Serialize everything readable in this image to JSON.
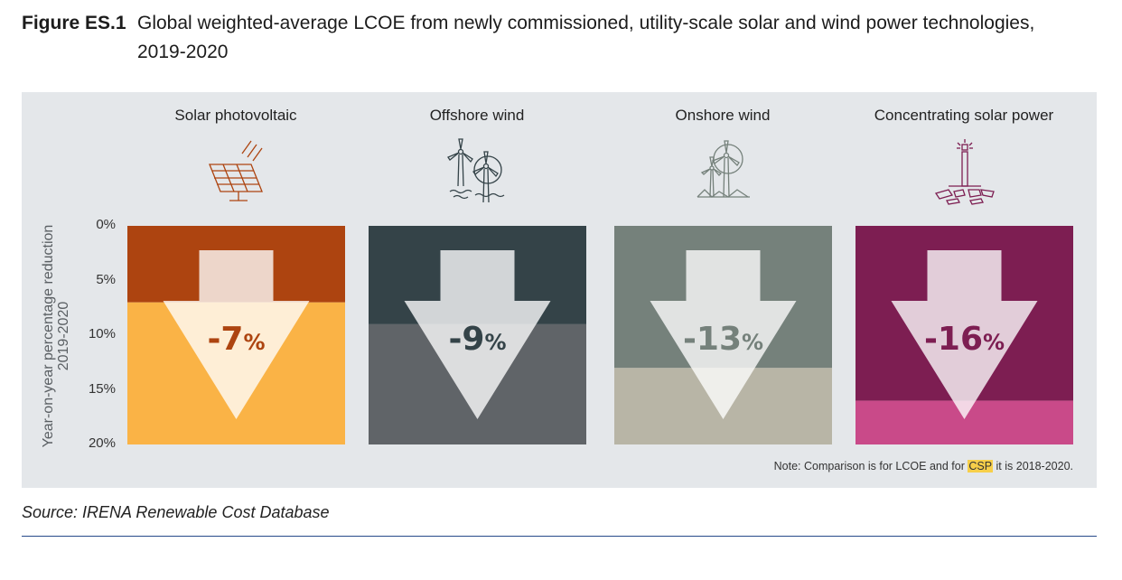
{
  "figure_label": "Figure ES.1",
  "figure_title": "Global weighted-average LCOE from newly commissioned, utility-scale solar and wind power technologies, 2019-2020",
  "note_prefix": "Note: Comparison is for LCOE and for ",
  "note_highlight": "CSP",
  "note_suffix": " it is 2018-2020.",
  "source": "Source: IRENA Renewable Cost Database",
  "chart_data": {
    "type": "bar",
    "ylabel": "Year-on-year percentage reduction 2019-2020",
    "ylim": [
      0,
      20
    ],
    "yticks": [
      "0%",
      "5%",
      "10%",
      "15%",
      "20%"
    ],
    "categories": [
      "Solar photovoltaic",
      "Offshore wind",
      "Onshore wind",
      "Concentrating solar power"
    ],
    "values": [
      7,
      9,
      13,
      16
    ],
    "data_labels": [
      {
        "num": "-7",
        "sign": "%"
      },
      {
        "num": "-9",
        "sign": "%"
      },
      {
        "num": "-13",
        "sign": "%"
      },
      {
        "num": "-16",
        "sign": "%"
      }
    ],
    "colors": {
      "top": [
        "#ad4410",
        "#344348",
        "#75817b",
        "#7d1e52"
      ],
      "bottom": [
        "#fab346",
        "#606468",
        "#b8b5a6",
        "#c94a89"
      ],
      "label": [
        "#ad4410",
        "#344348",
        "#75817b",
        "#7d1e52"
      ]
    },
    "icons": [
      "solar-panel-icon",
      "offshore-wind-turbine-icon",
      "onshore-wind-turbine-icon",
      "csp-tower-icon"
    ],
    "grid": false,
    "legend": "none"
  }
}
